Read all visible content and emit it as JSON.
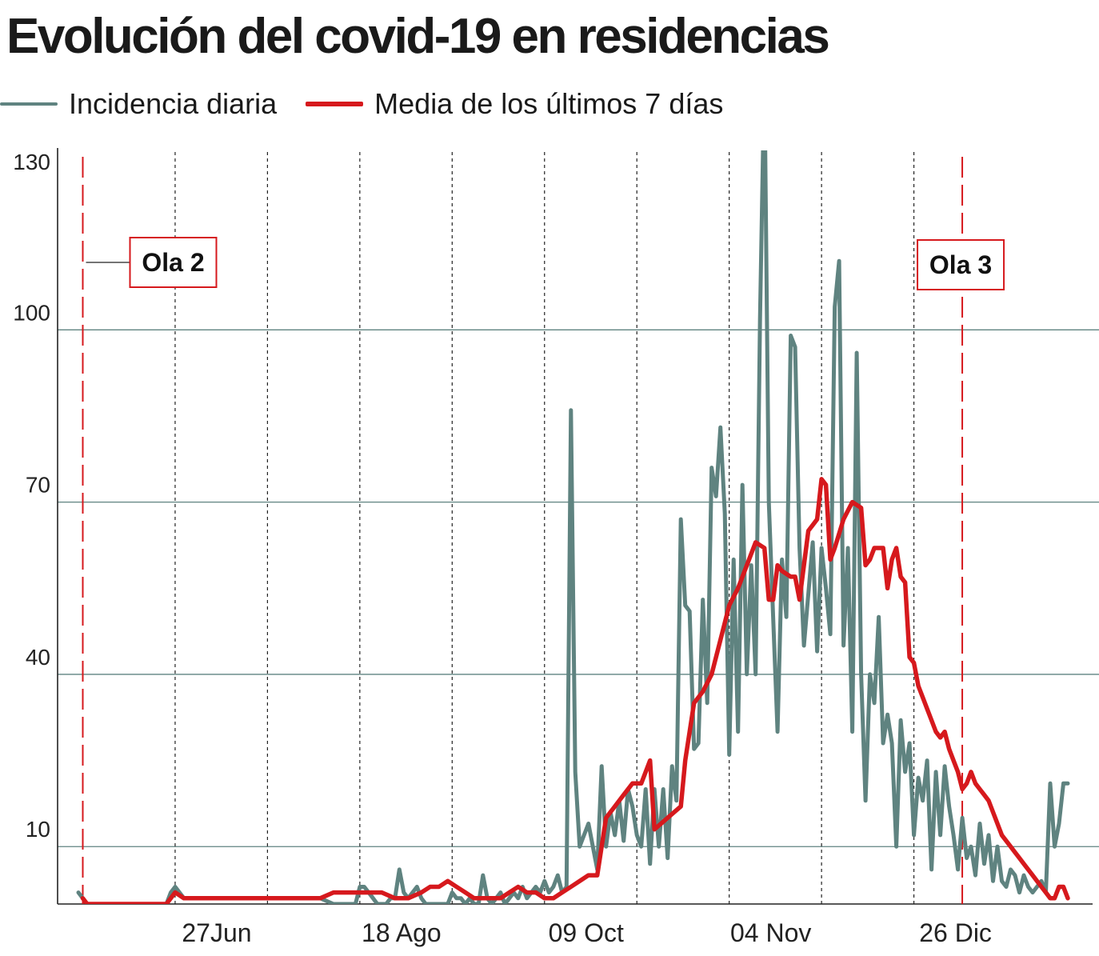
{
  "title": "Evolución del covid-19 en residencias",
  "legend": {
    "daily": "Incidencia diaria",
    "avg": "Media de los últimos 7 días"
  },
  "colors": {
    "daily": "#5f8380",
    "avg": "#d6191d",
    "wave": "#d6191d",
    "grid": "#5f8380"
  },
  "chart_data": {
    "type": "line",
    "ylim": [
      0,
      130
    ],
    "xlim": [
      0,
      225
    ],
    "grid": true,
    "legend_placement": "top-left",
    "yticks": [
      130,
      100,
      70,
      40,
      10
    ],
    "xticks": [
      {
        "label": "27Jun",
        "x": 22
      },
      {
        "label": "18 Ago",
        "x": 64
      },
      {
        "label": "09 Oct",
        "x": 106
      },
      {
        "label": "04 Nov",
        "x": 148
      },
      {
        "label": "26 Dic",
        "x": 190
      }
    ],
    "waves": [
      {
        "label": "Ola 2",
        "x": 1
      },
      {
        "label": "Ola 3",
        "x": 201
      }
    ],
    "series": [
      {
        "name": "Incidencia diaria",
        "points": [
          [
            0,
            2
          ],
          [
            1,
            1
          ],
          [
            2,
            0
          ],
          [
            4,
            0
          ],
          [
            6,
            0
          ],
          [
            8,
            0
          ],
          [
            10,
            0
          ],
          [
            12,
            0
          ],
          [
            14,
            0
          ],
          [
            16,
            0
          ],
          [
            18,
            0
          ],
          [
            20,
            0
          ],
          [
            21,
            2
          ],
          [
            22,
            3
          ],
          [
            24,
            1
          ],
          [
            28,
            1
          ],
          [
            34,
            1
          ],
          [
            40,
            1
          ],
          [
            46,
            1
          ],
          [
            52,
            1
          ],
          [
            55,
            1
          ],
          [
            58,
            0
          ],
          [
            61,
            0
          ],
          [
            63,
            0
          ],
          [
            64,
            3
          ],
          [
            65,
            3
          ],
          [
            66,
            2
          ],
          [
            67,
            1
          ],
          [
            68,
            0
          ],
          [
            69,
            0
          ],
          [
            70,
            0
          ],
          [
            71,
            1
          ],
          [
            72,
            1
          ],
          [
            73,
            6
          ],
          [
            74,
            2
          ],
          [
            75,
            1
          ],
          [
            76,
            2
          ],
          [
            77,
            3
          ],
          [
            78,
            1
          ],
          [
            79,
            0
          ],
          [
            80,
            0
          ],
          [
            81,
            0
          ],
          [
            82,
            0
          ],
          [
            83,
            0
          ],
          [
            84,
            0
          ],
          [
            85,
            2
          ],
          [
            86,
            1
          ],
          [
            87,
            1
          ],
          [
            88,
            0
          ],
          [
            89,
            1
          ],
          [
            90,
            0
          ],
          [
            91,
            0
          ],
          [
            92,
            5
          ],
          [
            93,
            1
          ],
          [
            94,
            0
          ],
          [
            95,
            1
          ],
          [
            96,
            2
          ],
          [
            97,
            0
          ],
          [
            98,
            1
          ],
          [
            99,
            2
          ],
          [
            100,
            1
          ],
          [
            101,
            3
          ],
          [
            102,
            1
          ],
          [
            103,
            2
          ],
          [
            104,
            3
          ],
          [
            105,
            2
          ],
          [
            106,
            4
          ],
          [
            107,
            2
          ],
          [
            108,
            3
          ],
          [
            109,
            5
          ],
          [
            110,
            2
          ],
          [
            111,
            3
          ],
          [
            112,
            86
          ],
          [
            113,
            23
          ],
          [
            114,
            10
          ],
          [
            115,
            12
          ],
          [
            116,
            14
          ],
          [
            117,
            10
          ],
          [
            118,
            6
          ],
          [
            119,
            24
          ],
          [
            120,
            10
          ],
          [
            121,
            16
          ],
          [
            122,
            12
          ],
          [
            123,
            18
          ],
          [
            124,
            11
          ],
          [
            125,
            20
          ],
          [
            126,
            17
          ],
          [
            127,
            12
          ],
          [
            128,
            10
          ],
          [
            129,
            20
          ],
          [
            130,
            7
          ],
          [
            131,
            20
          ],
          [
            132,
            10
          ],
          [
            133,
            20
          ],
          [
            134,
            8
          ],
          [
            135,
            24
          ],
          [
            136,
            18
          ],
          [
            137,
            67
          ],
          [
            138,
            52
          ],
          [
            139,
            51
          ],
          [
            140,
            27
          ],
          [
            141,
            28
          ],
          [
            142,
            53
          ],
          [
            143,
            35
          ],
          [
            144,
            76
          ],
          [
            145,
            71
          ],
          [
            146,
            83
          ],
          [
            147,
            68
          ],
          [
            148,
            26
          ],
          [
            149,
            60
          ],
          [
            150,
            30
          ],
          [
            151,
            73
          ],
          [
            152,
            40
          ],
          [
            153,
            59
          ],
          [
            154,
            40
          ],
          [
            155,
            102
          ],
          [
            156,
            145
          ],
          [
            157,
            70
          ],
          [
            158,
            50
          ],
          [
            159,
            30
          ],
          [
            160,
            60
          ],
          [
            161,
            50
          ],
          [
            162,
            99
          ],
          [
            163,
            97
          ],
          [
            164,
            62
          ],
          [
            165,
            45
          ],
          [
            166,
            54
          ],
          [
            167,
            63
          ],
          [
            168,
            44
          ],
          [
            169,
            62
          ],
          [
            170,
            55
          ],
          [
            171,
            47
          ],
          [
            172,
            104
          ],
          [
            173,
            112
          ],
          [
            174,
            45
          ],
          [
            175,
            62
          ],
          [
            176,
            30
          ],
          [
            177,
            96
          ],
          [
            178,
            40
          ],
          [
            179,
            18
          ],
          [
            180,
            40
          ],
          [
            181,
            35
          ],
          [
            182,
            50
          ],
          [
            183,
            28
          ],
          [
            184,
            33
          ],
          [
            185,
            28
          ],
          [
            186,
            10
          ],
          [
            187,
            32
          ],
          [
            188,
            23
          ],
          [
            189,
            28
          ],
          [
            190,
            12
          ],
          [
            191,
            22
          ],
          [
            192,
            18
          ],
          [
            193,
            25
          ],
          [
            194,
            6
          ],
          [
            195,
            23
          ],
          [
            196,
            12
          ],
          [
            197,
            24
          ],
          [
            198,
            17
          ],
          [
            199,
            12
          ],
          [
            200,
            6
          ],
          [
            201,
            15
          ],
          [
            202,
            8
          ],
          [
            203,
            10
          ],
          [
            204,
            5
          ],
          [
            205,
            14
          ],
          [
            206,
            7
          ],
          [
            207,
            12
          ],
          [
            208,
            4
          ],
          [
            209,
            10
          ],
          [
            210,
            4
          ],
          [
            211,
            3
          ],
          [
            212,
            6
          ],
          [
            213,
            5
          ],
          [
            214,
            2
          ],
          [
            215,
            5
          ],
          [
            216,
            3
          ],
          [
            217,
            2
          ],
          [
            218,
            3
          ],
          [
            219,
            4
          ],
          [
            220,
            2
          ],
          [
            221,
            21
          ],
          [
            222,
            10
          ],
          [
            223,
            14
          ],
          [
            224,
            21
          ],
          [
            225,
            21
          ]
        ]
      },
      {
        "name": "Media de los últimos 7 días",
        "points": [
          [
            1,
            1
          ],
          [
            2,
            0
          ],
          [
            5,
            0
          ],
          [
            10,
            0
          ],
          [
            14,
            0
          ],
          [
            17,
            0
          ],
          [
            18,
            0
          ],
          [
            20,
            0
          ],
          [
            21,
            1
          ],
          [
            22,
            2
          ],
          [
            24,
            1
          ],
          [
            28,
            1
          ],
          [
            34,
            1
          ],
          [
            40,
            1
          ],
          [
            46,
            1
          ],
          [
            52,
            1
          ],
          [
            55,
            1
          ],
          [
            58,
            2
          ],
          [
            61,
            2
          ],
          [
            64,
            2
          ],
          [
            67,
            2
          ],
          [
            69,
            2
          ],
          [
            72,
            1
          ],
          [
            75,
            1
          ],
          [
            78,
            2
          ],
          [
            80,
            3
          ],
          [
            82,
            3
          ],
          [
            84,
            4
          ],
          [
            86,
            3
          ],
          [
            88,
            2
          ],
          [
            90,
            1
          ],
          [
            92,
            1
          ],
          [
            94,
            1
          ],
          [
            96,
            1
          ],
          [
            98,
            2
          ],
          [
            100,
            3
          ],
          [
            102,
            2
          ],
          [
            104,
            2
          ],
          [
            106,
            1
          ],
          [
            108,
            1
          ],
          [
            110,
            2
          ],
          [
            112,
            3
          ],
          [
            114,
            4
          ],
          [
            116,
            5
          ],
          [
            118,
            5
          ],
          [
            120,
            15
          ],
          [
            122,
            17
          ],
          [
            124,
            19
          ],
          [
            126,
            21
          ],
          [
            128,
            21
          ],
          [
            130,
            25
          ],
          [
            131,
            13
          ],
          [
            134,
            15
          ],
          [
            137,
            17
          ],
          [
            138,
            25
          ],
          [
            140,
            35
          ],
          [
            142,
            37
          ],
          [
            144,
            40
          ],
          [
            146,
            46
          ],
          [
            148,
            52
          ],
          [
            150,
            55
          ],
          [
            152,
            59
          ],
          [
            154,
            63
          ],
          [
            156,
            62
          ],
          [
            157,
            53
          ],
          [
            158,
            53
          ],
          [
            159,
            59
          ],
          [
            160,
            58
          ],
          [
            162,
            57
          ],
          [
            163,
            57
          ],
          [
            164,
            53
          ],
          [
            166,
            65
          ],
          [
            168,
            67
          ],
          [
            169,
            74
          ],
          [
            170,
            73
          ],
          [
            171,
            60
          ],
          [
            172,
            62
          ],
          [
            174,
            67
          ],
          [
            176,
            70
          ],
          [
            178,
            69
          ],
          [
            179,
            59
          ],
          [
            180,
            60
          ],
          [
            181,
            62
          ],
          [
            183,
            62
          ],
          [
            184,
            55
          ],
          [
            185,
            60
          ],
          [
            186,
            62
          ],
          [
            187,
            57
          ],
          [
            188,
            56
          ],
          [
            189,
            43
          ],
          [
            190,
            42
          ],
          [
            191,
            38
          ],
          [
            192,
            36
          ],
          [
            193,
            34
          ],
          [
            194,
            32
          ],
          [
            195,
            30
          ],
          [
            196,
            29
          ],
          [
            197,
            30
          ],
          [
            198,
            27
          ],
          [
            199,
            25
          ],
          [
            200,
            23
          ],
          [
            201,
            20
          ],
          [
            202,
            21
          ],
          [
            203,
            23
          ],
          [
            204,
            21
          ],
          [
            205,
            20
          ],
          [
            206,
            19
          ],
          [
            207,
            18
          ],
          [
            208,
            16
          ],
          [
            209,
            14
          ],
          [
            210,
            12
          ],
          [
            211,
            11
          ],
          [
            212,
            10
          ],
          [
            213,
            9
          ],
          [
            214,
            8
          ],
          [
            215,
            7
          ],
          [
            216,
            6
          ],
          [
            217,
            5
          ],
          [
            218,
            4
          ],
          [
            219,
            3
          ],
          [
            220,
            2
          ],
          [
            221,
            1
          ],
          [
            222,
            1
          ],
          [
            223,
            3
          ],
          [
            224,
            3
          ],
          [
            225,
            1
          ]
        ]
      }
    ]
  }
}
